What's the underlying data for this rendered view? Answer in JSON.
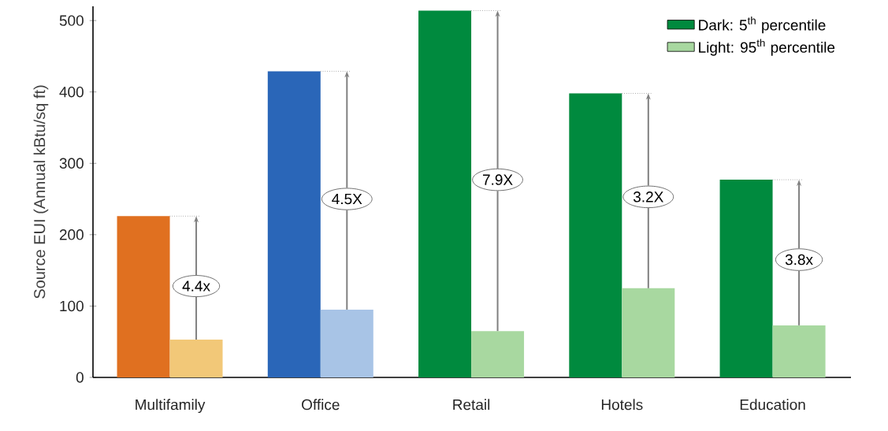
{
  "chart_data": {
    "type": "bar",
    "ylabel": "Source EUI (Annual kBtu/sq ft)",
    "categories": [
      "Multifamily",
      "Office",
      "Retail",
      "Hotels",
      "Education"
    ],
    "series": [
      {
        "name": "Dark: 5$^{th}$ percentile",
        "color": "#008a3e",
        "colors": [
          "#e07020",
          "#2a66b8",
          "#008a3e",
          "#008a3e",
          "#008a3e"
        ],
        "values": [
          226,
          429,
          514,
          398,
          277
        ]
      },
      {
        "name": "Light: 95$^{th}$ percentile",
        "color": "#a8d8a0",
        "colors": [
          "#f2c878",
          "#a8c4e6",
          "#a8d8a0",
          "#a8d8a0",
          "#a8d8a0"
        ],
        "values": [
          53,
          95,
          65,
          125,
          73
        ]
      }
    ],
    "ylim": [
      0,
      520
    ],
    "yticks": [
      0,
      100,
      200,
      300,
      400,
      500
    ],
    "grid": false,
    "legend": "top right",
    "annotations": [
      {
        "text": "4.4x",
        "x": "Multifamily",
        "y": 128
      },
      {
        "text": "4.5X",
        "x": "Office",
        "y": 250
      },
      {
        "text": "7.9X",
        "x": "Retail",
        "y": 277
      },
      {
        "text": "3.2X",
        "x": "Hotels",
        "y": 253
      },
      {
        "text": "3.8x",
        "x": "Education",
        "y": 165
      }
    ]
  }
}
